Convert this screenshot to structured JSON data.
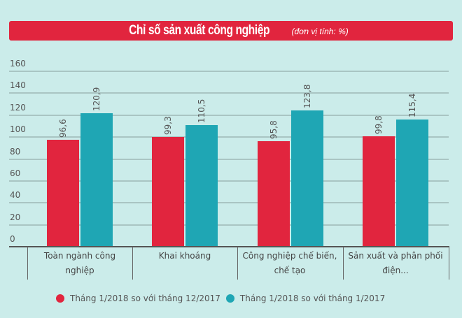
{
  "title": {
    "main": "Chỉ số sản xuất công nghiệp",
    "unit": "(đơn vị tính: %)"
  },
  "colors": {
    "series1": "#E1253E",
    "series2": "#1FA6B4",
    "background": "#CBECEA"
  },
  "y_ticks": [
    "160",
    "140",
    "120",
    "100",
    "80",
    "60",
    "40",
    "20",
    "0"
  ],
  "categories": [
    [
      "Toàn ngành công",
      "nghiệp"
    ],
    [
      "Khai khoáng",
      ""
    ],
    [
      "Công nghiệp chế biến,",
      "chế tạo"
    ],
    [
      "Sản xuất và phân phối",
      "điện..."
    ]
  ],
  "bar_labels": {
    "series1": [
      "96,6",
      "99,3",
      "95,8",
      "99,8"
    ],
    "series2": [
      "120,9",
      "110,5",
      "123,8",
      "115,4"
    ]
  },
  "legend": [
    {
      "label": "Tháng 1/2018 so với tháng 12/2017"
    },
    {
      "label": "Tháng 1/2018 so với tháng 1/2017"
    }
  ],
  "chart_data": {
    "type": "bar",
    "title": "Chỉ số sản xuất công nghiệp (đơn vị tính: %)",
    "categories": [
      "Toàn ngành công nghiệp",
      "Khai khoáng",
      "Công nghiệp chế biến, chế tạo",
      "Sản xuất và phân phối điện..."
    ],
    "series": [
      {
        "name": "Tháng 1/2018 so với tháng 12/2017",
        "values": [
          96.6,
          99.3,
          95.8,
          99.8
        ],
        "color": "#E1253E"
      },
      {
        "name": "Tháng 1/2018 so với tháng 1/2017",
        "values": [
          120.9,
          110.5,
          123.8,
          115.4
        ],
        "color": "#1FA6B4"
      }
    ],
    "xlabel": "",
    "ylabel": "",
    "ylim": [
      0,
      160
    ],
    "yticks": [
      0,
      20,
      40,
      60,
      80,
      100,
      120,
      140,
      160
    ],
    "grid": true,
    "legend_position": "bottom"
  }
}
